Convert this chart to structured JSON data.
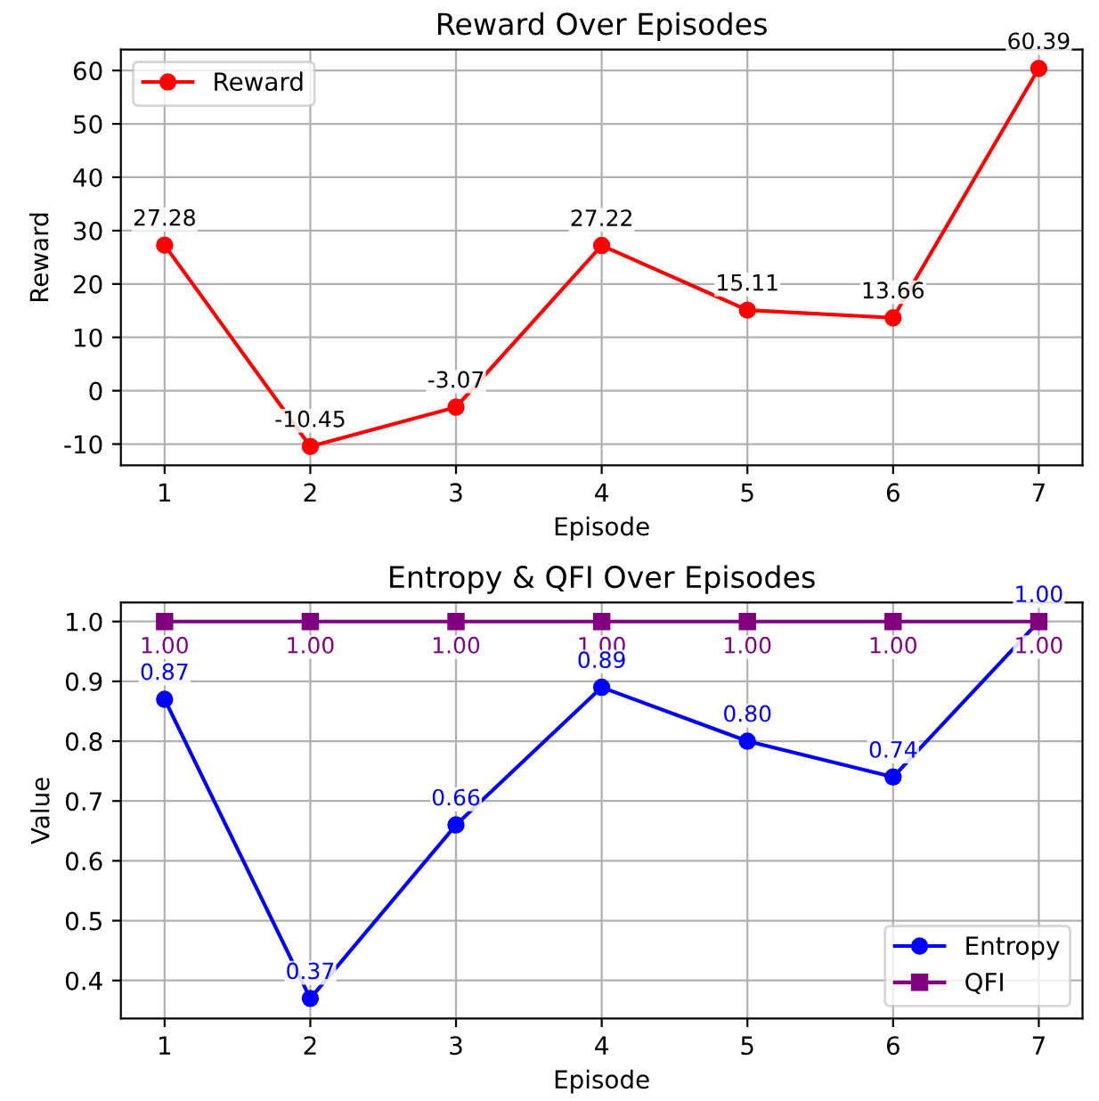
{
  "chart_data": [
    {
      "type": "line",
      "title": "Reward Over Episodes",
      "xlabel": "Episode",
      "ylabel": "Reward",
      "x": [
        1,
        2,
        3,
        4,
        5,
        6,
        7
      ],
      "xlim": [
        0.7,
        7.3
      ],
      "xticks": [
        1,
        2,
        3,
        4,
        5,
        6,
        7
      ],
      "ylim": [
        -13.99,
        63.93
      ],
      "yticks": [
        -10,
        0,
        10,
        20,
        30,
        40,
        50,
        60
      ],
      "grid": true,
      "legend": "top left",
      "data_labels": true,
      "series": [
        {
          "name": "Reward",
          "color": "#ff0000",
          "marker": "circle",
          "values": [
            27.28,
            -10.45,
            -3.07,
            27.22,
            15.11,
            13.66,
            60.39
          ]
        }
      ]
    },
    {
      "type": "line",
      "title": "Entropy & QFI Over Episodes",
      "xlabel": "Episode",
      "ylabel": "Value",
      "x": [
        1,
        2,
        3,
        4,
        5,
        6,
        7
      ],
      "xlim": [
        0.7,
        7.3
      ],
      "xticks": [
        1,
        2,
        3,
        4,
        5,
        6,
        7
      ],
      "ylim": [
        0.3366,
        1.0316
      ],
      "yticks": [
        {
          "value": 0.4,
          "label": "0.4"
        },
        {
          "value": 0.5,
          "label": "0.5"
        },
        {
          "value": 0.6,
          "label": "0.6"
        },
        {
          "value": 0.7,
          "label": "0.7"
        },
        {
          "value": 0.8,
          "label": "0.8"
        },
        {
          "value": 0.9,
          "label": "0.9"
        },
        {
          "value": 1.0,
          "label": "1.0"
        }
      ],
      "grid": true,
      "legend": "bottom right",
      "series": [
        {
          "name": "Entropy",
          "color": "#0000ff",
          "marker": "circle",
          "values": [
            0.87,
            0.37,
            0.66,
            0.89,
            0.8,
            0.74,
            1.0
          ],
          "value_labels": [
            "0.87",
            "0.37",
            "0.66",
            "0.89",
            "0.80",
            "0.74",
            "1.00"
          ]
        },
        {
          "name": "QFI",
          "color": "#800080",
          "marker": "square",
          "values": [
            1.0,
            1.0,
            1.0,
            1.0,
            1.0,
            1.0,
            1.0
          ],
          "value_labels": [
            "1.00",
            "1.00",
            "1.00",
            "1.00",
            "1.00",
            "1.00",
            "1.00"
          ]
        }
      ]
    }
  ]
}
